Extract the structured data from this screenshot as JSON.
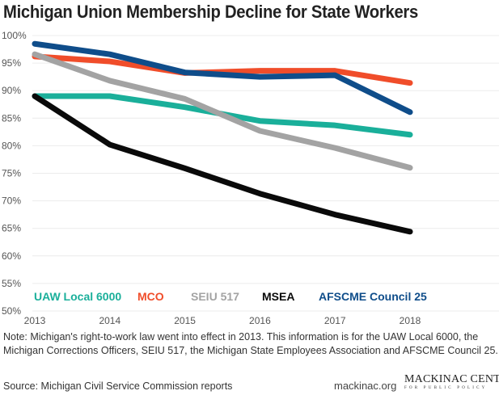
{
  "chart_data": {
    "type": "line",
    "title": "Michigan Union Membership Decline for State Workers",
    "x": [
      2013,
      2014,
      2015,
      2016,
      2017,
      2018
    ],
    "x_tick_labels": [
      "2013",
      "2014",
      "2015",
      "2016",
      "2017",
      "2018"
    ],
    "y_tick_labels": [
      "100%",
      "95%",
      "90%",
      "85%",
      "80%",
      "75%",
      "70%",
      "65%",
      "60%",
      "55%",
      "50%"
    ],
    "ylim": [
      50,
      100
    ],
    "grid": true,
    "legend_placement": "bottom inside plot",
    "series": [
      {
        "name": "UAW Local 6000",
        "color": "#1aaf9a",
        "values": [
          89,
          89,
          87,
          84.5,
          83.7,
          82
        ]
      },
      {
        "name": "MCO",
        "color": "#f04d2a",
        "values": [
          96.2,
          95.3,
          93.2,
          93.6,
          93.6,
          91.4
        ]
      },
      {
        "name": "SEIU 517",
        "color": "#a3a3a3",
        "values": [
          96.6,
          91.8,
          88.5,
          82.7,
          79.6,
          76
        ]
      },
      {
        "name": "MSEA",
        "color": "#0a0a0a",
        "values": [
          89,
          80.2,
          75.9,
          71.3,
          67.5,
          64.4
        ]
      },
      {
        "name": "AFSCME Council 25",
        "color": "#0f4d8a",
        "values": [
          98.5,
          96.6,
          93.3,
          92.5,
          92.8,
          86.1
        ]
      }
    ]
  },
  "note": "Note: Michigan's right-to-work law went into effect in 2013. This information is for the UAW Local 6000, the Michigan Corrections Officers, SEIU 517, the Michigan State Employees Association and AFSCME Council 25.",
  "source": "Source: Michigan Civil Service Commission reports",
  "website": "mackinac.org",
  "logo": {
    "main": "MACKINAC CENTER",
    "sub": "FOR PUBLIC POLICY"
  }
}
